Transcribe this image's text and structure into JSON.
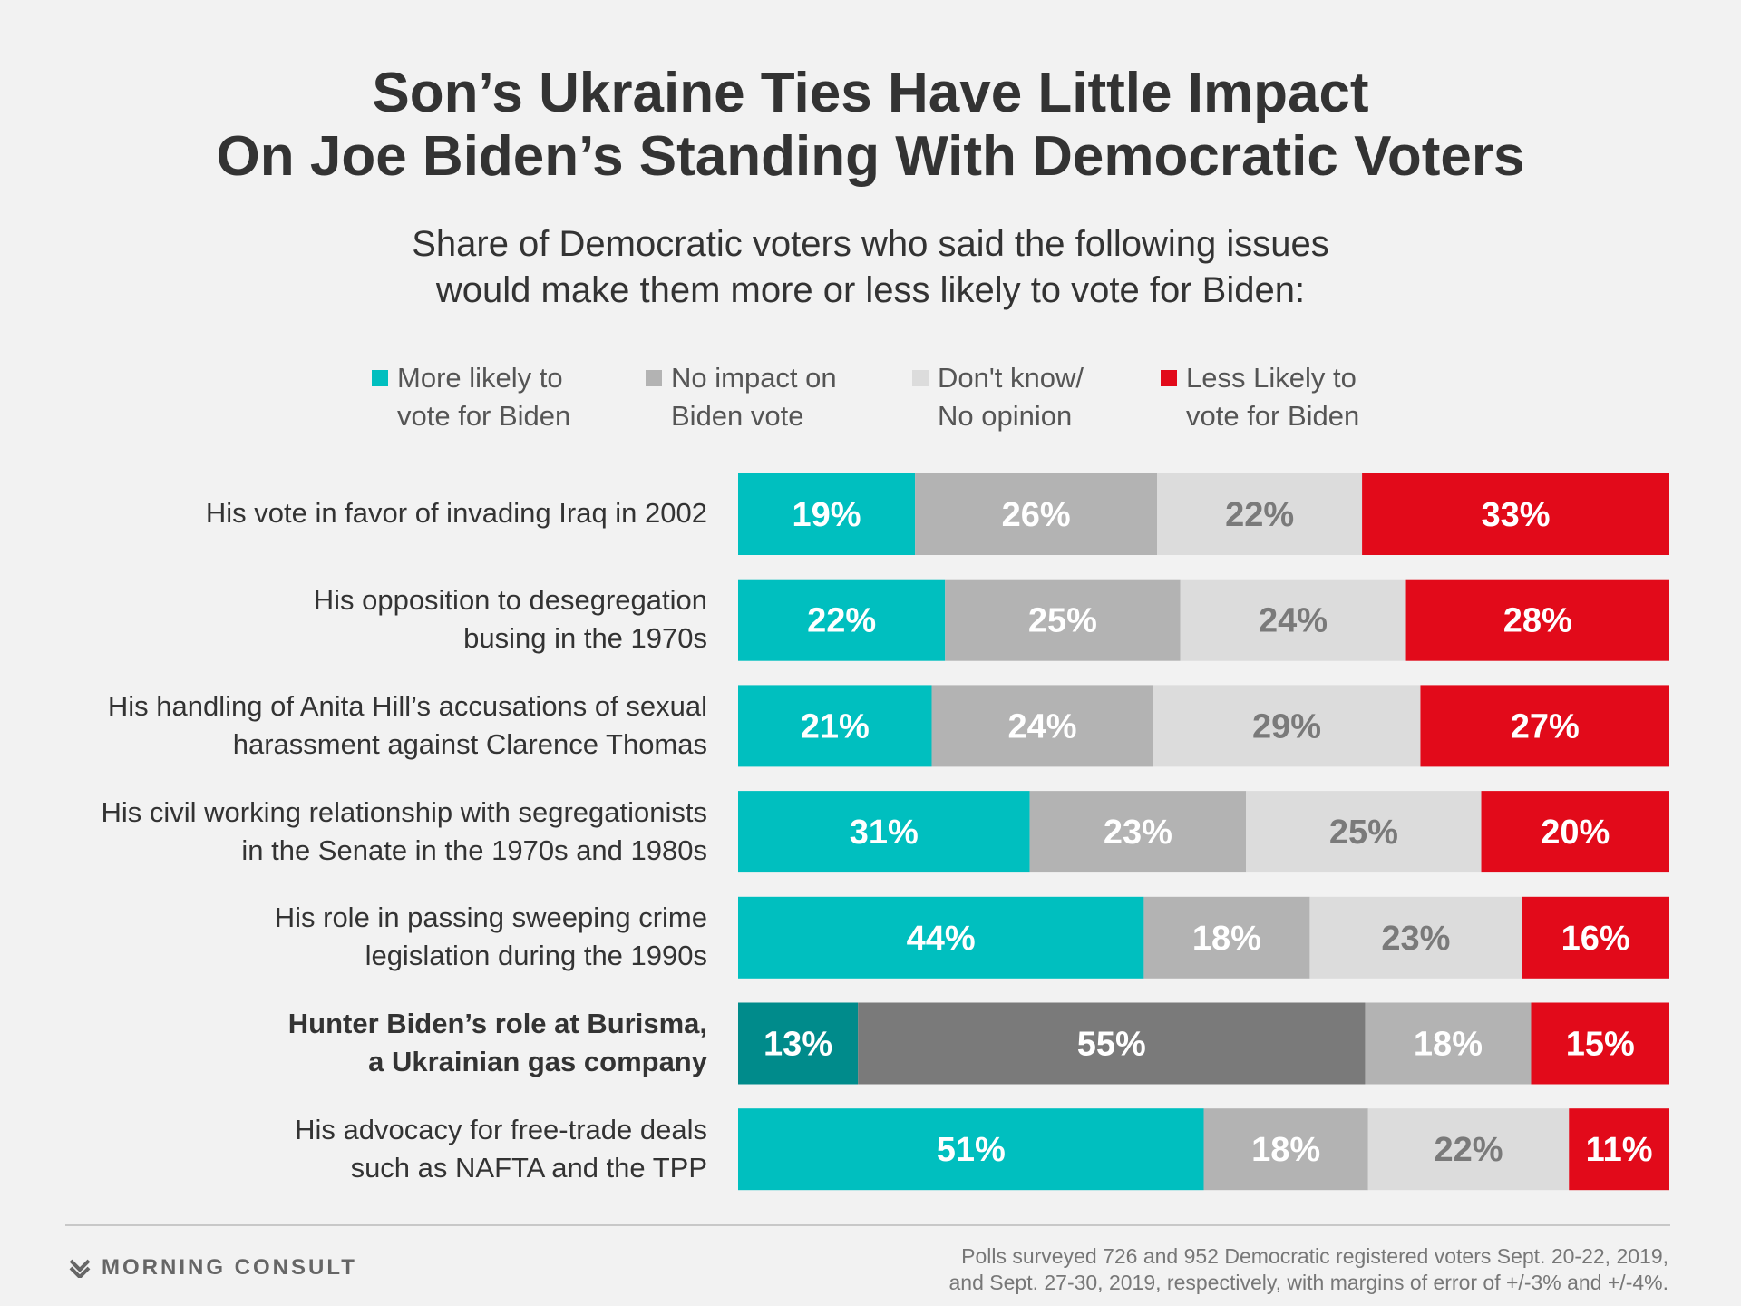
{
  "title": {
    "line1": "Son’s Ukraine Ties Have Little Impact",
    "line2": "On Joe Biden’s Standing With Democratic Voters"
  },
  "subtitle": {
    "line1": "Share of Democratic voters who said the following issues",
    "line2": "would make them more or less likely to vote for Biden:"
  },
  "legend": [
    {
      "line1": "More likely to",
      "line2": "vote for Biden",
      "color": "#00bfbf"
    },
    {
      "line1": "No impact on",
      "line2": "Biden vote",
      "color": "#b3b3b3"
    },
    {
      "line1": "Don't know/",
      "line2": "No opinion",
      "color": "#dcdcdc"
    },
    {
      "line1": "Less Likely to",
      "line2": "vote for Biden",
      "color": "#e20a1a"
    }
  ],
  "rows": [
    {
      "lines": [
        "His vote in favor of invading Iraq in 2002"
      ]
    },
    {
      "lines": [
        "His opposition to desegregation",
        "busing in the 1970s"
      ]
    },
    {
      "lines": [
        "His handling of Anita Hill’s accusations of sexual",
        "harassment against Clarence Thomas"
      ]
    },
    {
      "lines": [
        "His civil working relationship with segregationists",
        "in the Senate in the 1970s and 1980s"
      ]
    },
    {
      "lines": [
        "His role in passing sweeping crime",
        "legislation during the 1990s"
      ]
    },
    {
      "lines": [
        "Hunter Biden’s role at Burisma,",
        "a Ukrainian gas company"
      ],
      "emphasis": true
    },
    {
      "lines": [
        "His advocacy for free-trade deals",
        "such as NAFTA and the TPP"
      ]
    }
  ],
  "chart_data": {
    "type": "bar",
    "orientation": "horizontal",
    "stacked": true,
    "title": "Son’s Ukraine Ties Have Little Impact On Joe Biden’s Standing With Democratic Voters",
    "subtitle": "Share of Democratic voters who said the following issues would make them more or less likely to vote for Biden:",
    "categories": [
      "His vote in favor of invading Iraq in 2002",
      "His opposition to desegregation busing in the 1970s",
      "His handling of Anita Hill’s accusations of sexual harassment against Clarence Thomas",
      "His civil working relationship with segregationists in the Senate in the 1970s and 1980s",
      "His role in passing sweeping crime legislation during the 1990s",
      "Hunter Biden’s role at Burisma, a Ukrainian gas company",
      "His advocacy for free-trade deals such as NAFTA and the TPP"
    ],
    "series": [
      {
        "name": "More likely to vote for Biden",
        "color": "#00bfbf",
        "highlight_color": "#008b8b",
        "label_color": "#ffffff",
        "values": [
          19,
          22,
          21,
          31,
          44,
          13,
          51
        ]
      },
      {
        "name": "No impact on Biden vote",
        "color": "#b3b3b3",
        "highlight_color": "#7a7a7a",
        "label_color": "#ffffff",
        "values": [
          26,
          25,
          24,
          23,
          18,
          55,
          18
        ]
      },
      {
        "name": "Don't know/ No opinion",
        "color": "#dcdcdc",
        "highlight_color": "#b3b3b3",
        "label_color": "#7a7a7a",
        "highlight_label_color": "#ffffff",
        "values": [
          22,
          24,
          29,
          25,
          23,
          18,
          22
        ]
      },
      {
        "name": "Less Likely to vote for Biden",
        "color": "#e20a1a",
        "highlight_color": "#e20a1a",
        "label_color": "#ffffff",
        "values": [
          33,
          28,
          27,
          20,
          16,
          15,
          11
        ]
      }
    ],
    "highlight_category_index": 5,
    "value_suffix": "%",
    "xlim": [
      0,
      100
    ],
    "grid": false
  },
  "footer": {
    "brand": "MORNING CONSULT",
    "note_line1": "Polls surveyed 726 and 952 Democratic registered voters Sept. 20-22, 2019,",
    "note_line2": "and Sept. 27-30, 2019, respectively, with margins of error of +/-3% and +/-4%."
  }
}
